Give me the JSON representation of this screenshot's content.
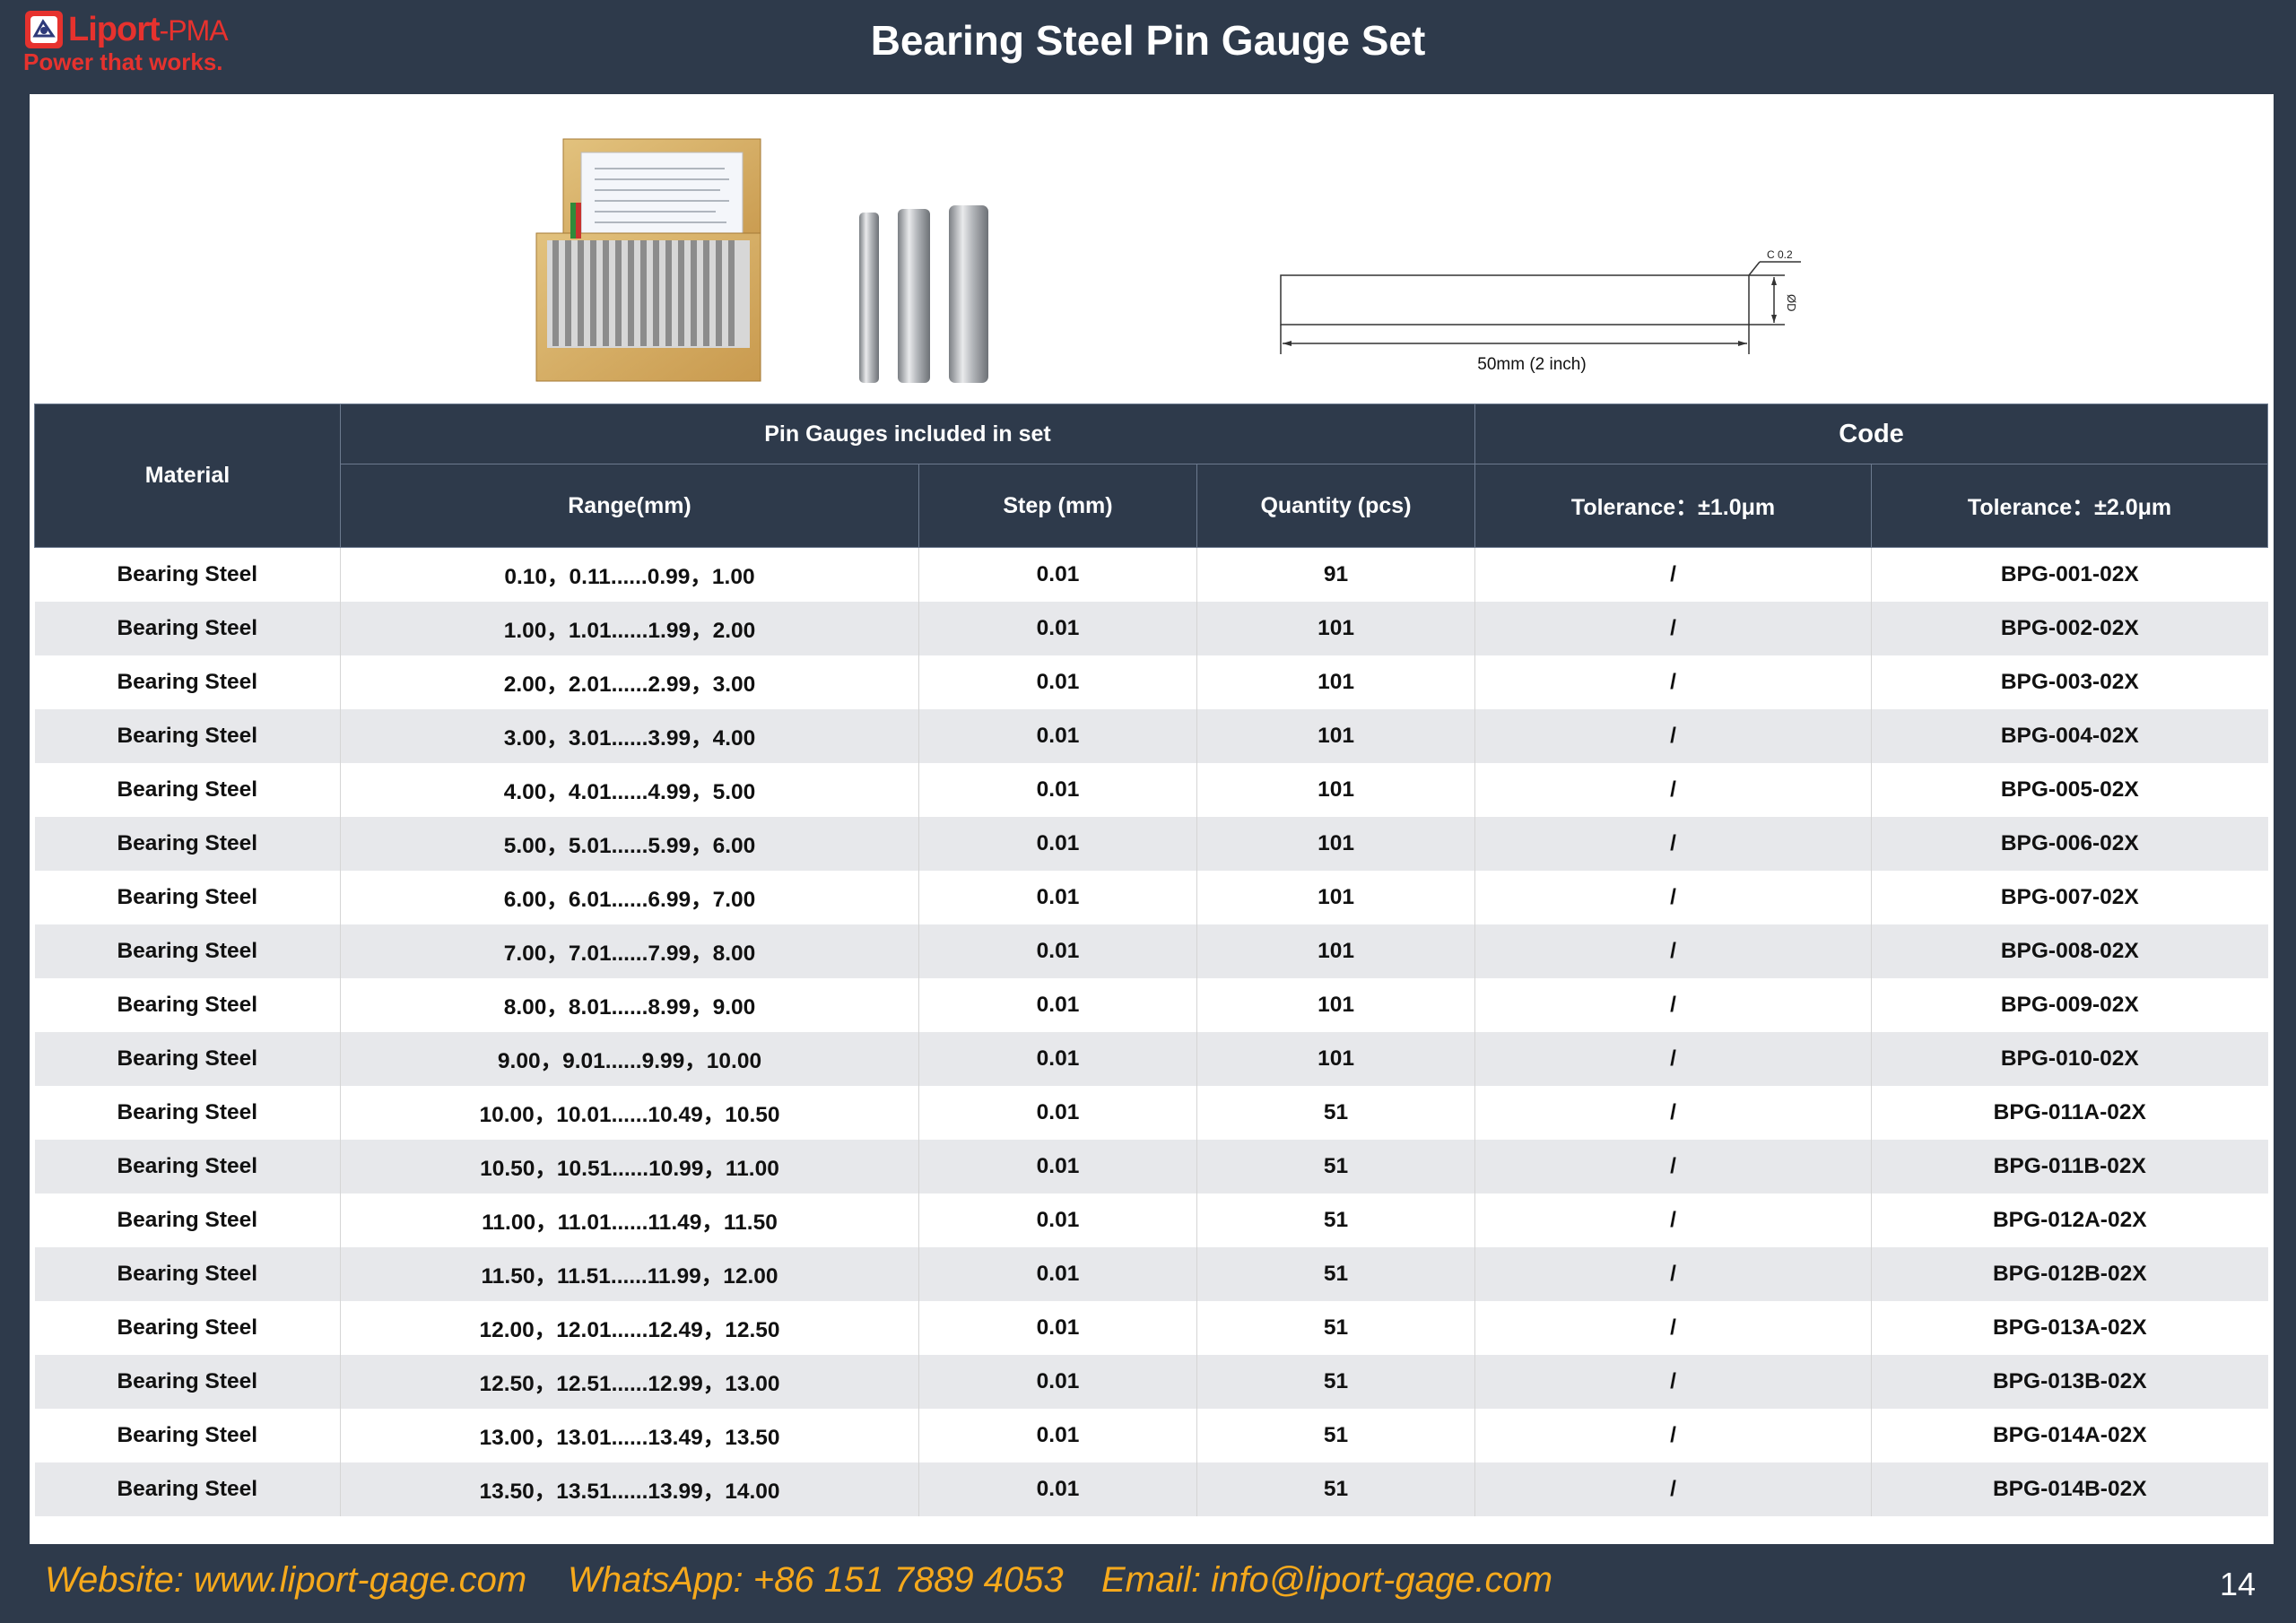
{
  "header": {
    "logo_name": "Liport",
    "logo_suffix": "-PMA",
    "logo_tagline": "Power that works.",
    "title": "Bearing Steel Pin Gauge Set"
  },
  "drawing": {
    "chamfer_label": "C 0.2",
    "diameter_label": "ØD",
    "length_label": "50mm (2 inch)"
  },
  "table": {
    "headers": {
      "material": "Material",
      "included": "Pin Gauges included in set",
      "code": "Code",
      "range": "Range(mm)",
      "step": "Step (mm)",
      "quantity": "Quantity (pcs)",
      "tol1": "Tolerance：±1.0μm",
      "tol2": "Tolerance：±2.0μm"
    },
    "rows": [
      {
        "material": "Bearing Steel",
        "range": "0.10，0.11......0.99，1.00",
        "step": "0.01",
        "qty": "91",
        "tol1": "/",
        "tol2": "BPG-001-02X"
      },
      {
        "material": "Bearing Steel",
        "range": "1.00，1.01......1.99，2.00",
        "step": "0.01",
        "qty": "101",
        "tol1": "/",
        "tol2": "BPG-002-02X"
      },
      {
        "material": "Bearing Steel",
        "range": "2.00，2.01......2.99，3.00",
        "step": "0.01",
        "qty": "101",
        "tol1": "/",
        "tol2": "BPG-003-02X"
      },
      {
        "material": "Bearing Steel",
        "range": "3.00，3.01......3.99，4.00",
        "step": "0.01",
        "qty": "101",
        "tol1": "/",
        "tol2": "BPG-004-02X"
      },
      {
        "material": "Bearing Steel",
        "range": "4.00，4.01......4.99，5.00",
        "step": "0.01",
        "qty": "101",
        "tol1": "/",
        "tol2": "BPG-005-02X"
      },
      {
        "material": "Bearing Steel",
        "range": "5.00，5.01......5.99，6.00",
        "step": "0.01",
        "qty": "101",
        "tol1": "/",
        "tol2": "BPG-006-02X"
      },
      {
        "material": "Bearing Steel",
        "range": "6.00，6.01......6.99，7.00",
        "step": "0.01",
        "qty": "101",
        "tol1": "/",
        "tol2": "BPG-007-02X"
      },
      {
        "material": "Bearing Steel",
        "range": "7.00，7.01......7.99，8.00",
        "step": "0.01",
        "qty": "101",
        "tol1": "/",
        "tol2": "BPG-008-02X"
      },
      {
        "material": "Bearing Steel",
        "range": "8.00，8.01......8.99，9.00",
        "step": "0.01",
        "qty": "101",
        "tol1": "/",
        "tol2": "BPG-009-02X"
      },
      {
        "material": "Bearing Steel",
        "range": "9.00，9.01......9.99，10.00",
        "step": "0.01",
        "qty": "101",
        "tol1": "/",
        "tol2": "BPG-010-02X"
      },
      {
        "material": "Bearing Steel",
        "range": "10.00，10.01......10.49，10.50",
        "step": "0.01",
        "qty": "51",
        "tol1": "/",
        "tol2": "BPG-011A-02X"
      },
      {
        "material": "Bearing Steel",
        "range": "10.50，10.51......10.99，11.00",
        "step": "0.01",
        "qty": "51",
        "tol1": "/",
        "tol2": "BPG-011B-02X"
      },
      {
        "material": "Bearing Steel",
        "range": "11.00，11.01......11.49，11.50",
        "step": "0.01",
        "qty": "51",
        "tol1": "/",
        "tol2": "BPG-012A-02X"
      },
      {
        "material": "Bearing Steel",
        "range": "11.50，11.51......11.99，12.00",
        "step": "0.01",
        "qty": "51",
        "tol1": "/",
        "tol2": "BPG-012B-02X"
      },
      {
        "material": "Bearing Steel",
        "range": "12.00，12.01......12.49，12.50",
        "step": "0.01",
        "qty": "51",
        "tol1": "/",
        "tol2": "BPG-013A-02X"
      },
      {
        "material": "Bearing Steel",
        "range": "12.50，12.51......12.99，13.00",
        "step": "0.01",
        "qty": "51",
        "tol1": "/",
        "tol2": "BPG-013B-02X"
      },
      {
        "material": "Bearing Steel",
        "range": "13.00，13.01......13.49，13.50",
        "step": "0.01",
        "qty": "51",
        "tol1": "/",
        "tol2": "BPG-014A-02X"
      },
      {
        "material": "Bearing Steel",
        "range": "13.50，13.51......13.99，14.00",
        "step": "0.01",
        "qty": "51",
        "tol1": "/",
        "tol2": "BPG-014B-02X"
      }
    ]
  },
  "footer": {
    "website": "Website: www.liport-gage.com",
    "whatsapp": "WhatsApp: +86 151 7889 4053",
    "email": "Email: info@liport-gage.com",
    "page_number": "14"
  },
  "colors": {
    "background": "#2e3a4b",
    "accent_orange": "#f6a91c",
    "logo_red": "#e6322e",
    "row_alt": "#e7e8eb"
  },
  "icons": {
    "logo": "liport-logo-icon",
    "box_photo": "pin-gauge-box-photo",
    "pins_photo": "pin-gauges-photo",
    "drawing": "pin-dimension-drawing"
  }
}
